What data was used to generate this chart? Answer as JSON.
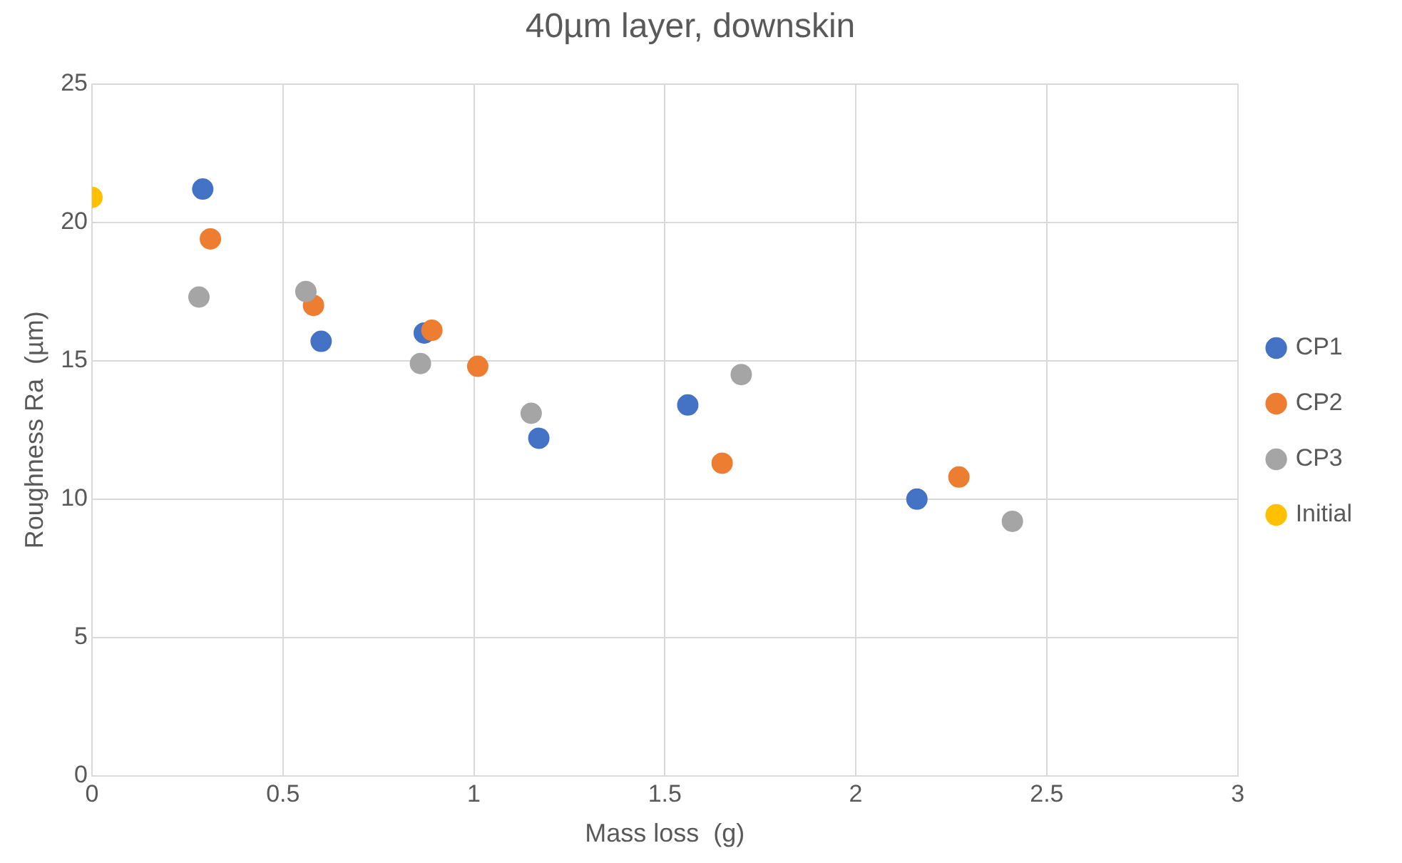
{
  "chart_data": {
    "type": "scatter",
    "title": "40µm layer, downskin",
    "xlabel": "Mass loss  (g)",
    "ylabel": "Roughness Ra  (µm)",
    "xlim": [
      0,
      3
    ],
    "xticks": [
      0,
      0.5,
      1,
      1.5,
      2,
      2.5,
      3
    ],
    "ylim": [
      0,
      25
    ],
    "yticks": [
      0,
      5,
      10,
      15,
      20,
      25
    ],
    "grid": true,
    "legend": "right",
    "marker": "circle",
    "series": [
      {
        "name": "CP1",
        "color": "#4472c4",
        "x": [
          0.29,
          0.6,
          0.87,
          1.17,
          1.56,
          2.16
        ],
        "values": [
          21.2,
          15.7,
          16.0,
          12.2,
          13.4,
          10.0
        ]
      },
      {
        "name": "CP2",
        "color": "#ed7d31",
        "x": [
          0.31,
          0.58,
          0.89,
          1.01,
          1.65,
          2.27
        ],
        "values": [
          19.4,
          17.0,
          16.1,
          14.8,
          11.3,
          10.8
        ]
      },
      {
        "name": "CP3",
        "color": "#a5a5a5",
        "x": [
          0.28,
          0.56,
          0.86,
          1.15,
          1.7,
          2.41
        ],
        "values": [
          17.3,
          17.5,
          14.9,
          13.1,
          14.5,
          9.2
        ]
      },
      {
        "name": "Initial",
        "color": "#ffc000",
        "x": [
          0
        ],
        "values": [
          20.9
        ]
      }
    ]
  }
}
